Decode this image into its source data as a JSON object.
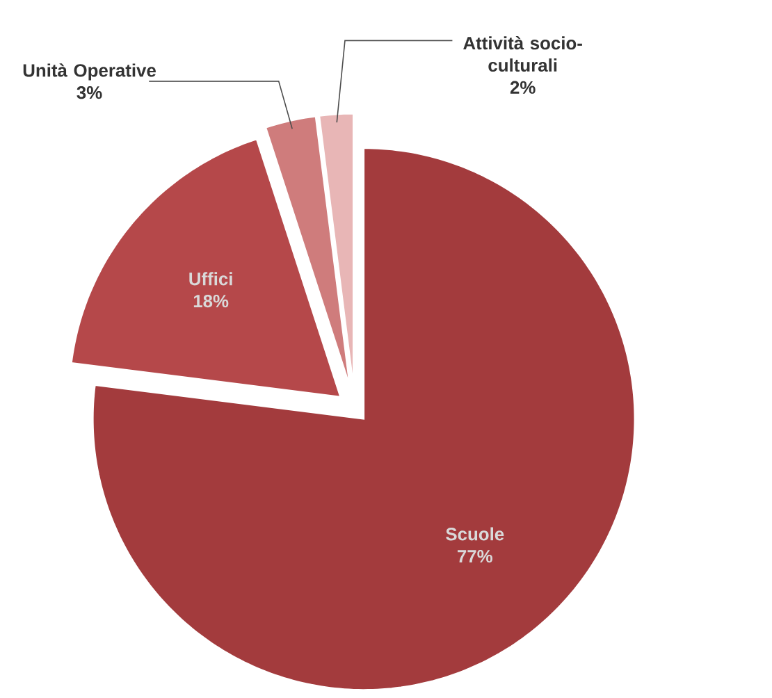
{
  "chart_data": {
    "type": "pie",
    "categories": [
      "Scuole",
      "Uffici",
      "Unità Operative",
      "Attività socio-culturali"
    ],
    "values": [
      77,
      18,
      3,
      2
    ],
    "value_labels": [
      "77%",
      "18%",
      "3%",
      "2%"
    ],
    "colors": [
      "#a33b3d",
      "#b5484a",
      "#cf7c7c",
      "#e8b6b6"
    ]
  }
}
